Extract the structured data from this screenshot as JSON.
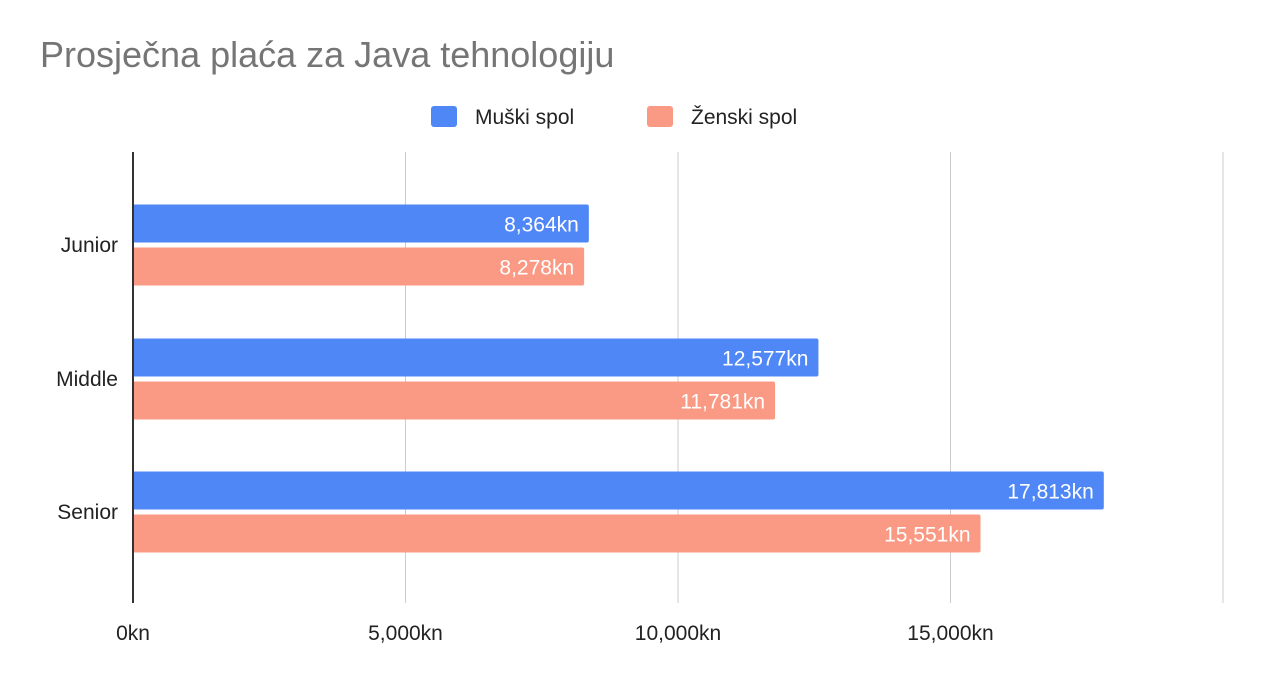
{
  "chart_data": {
    "type": "bar",
    "orientation": "horizontal",
    "title": "Prosječna plaća za Java tehnologiju",
    "categories": [
      "Junior",
      "Middle",
      "Senior"
    ],
    "series": [
      {
        "name": "Muški spol",
        "values": [
          8364,
          12577,
          17813
        ],
        "labels": [
          "8,364kn",
          "12,577kn",
          "17,813kn"
        ],
        "color": "#4f87f7"
      },
      {
        "name": "Ženski spol",
        "values": [
          8278,
          11781,
          15551
        ],
        "labels": [
          "8,278kn",
          "11,781kn",
          "15,551kn"
        ],
        "color": "#fb9a84"
      }
    ],
    "xlim": [
      0,
      20000
    ],
    "xticks": [
      0,
      5000,
      10000,
      15000
    ],
    "xtick_labels": [
      "0kn",
      "5,000kn",
      "10,000kn",
      "15,000kn"
    ],
    "grid": true,
    "legend_position": "top"
  }
}
